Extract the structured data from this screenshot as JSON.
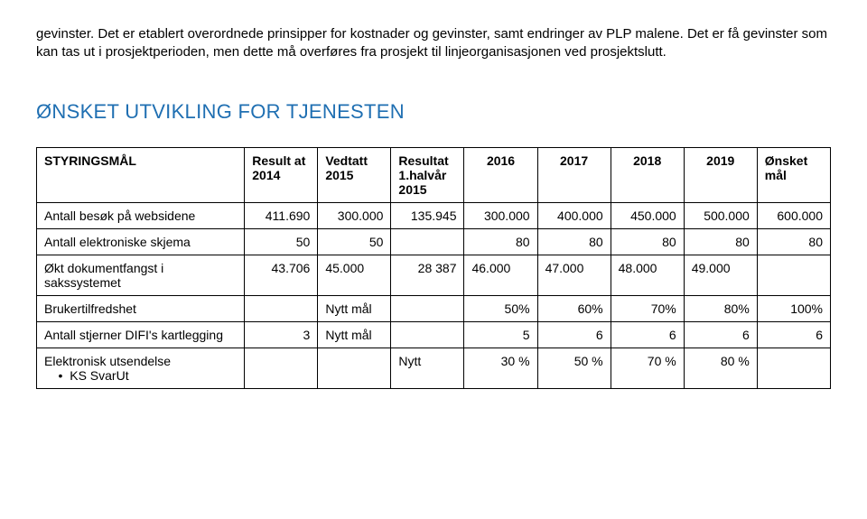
{
  "intro_text": "gevinster. Det er etablert overordnede prinsipper for kostnader og gevinster, samt endringer av PLP malene. Det er få gevinster som kan tas ut i prosjektperioden, men dette må overføres fra prosjekt til linjeorganisasjonen ved prosjektslutt.",
  "section_title": "ØNSKET UTVIKLING FOR TJENESTEN",
  "table": {
    "columns": [
      "STYRINGSMÅL",
      "Result at 2014",
      "Vedtatt 2015",
      "Resultat 1.halvår 2015",
      "2016",
      "2017",
      "2018",
      "2019",
      "Ønsket mål"
    ],
    "rows": [
      {
        "label": "Antall besøk på websidene",
        "cells": [
          "411.690",
          "300.000",
          "135.945",
          "300.000",
          "400.000",
          "450.000",
          "500.000",
          "600.000"
        ],
        "align": [
          "right",
          "right",
          "right",
          "right",
          "right",
          "right",
          "right",
          "right"
        ]
      },
      {
        "label": "Antall elektroniske skjema",
        "cells": [
          "50",
          "50",
          "",
          "80",
          "80",
          "80",
          "80",
          "80"
        ],
        "align": [
          "right",
          "right",
          "right",
          "right",
          "right",
          "right",
          "right",
          "right"
        ]
      },
      {
        "label": "Økt dokumentfangst i sakssystemet",
        "cells": [
          "43.706",
          "45.000",
          "28 387",
          "46.000",
          "47.000",
          "48.000",
          "49.000",
          ""
        ],
        "align": [
          "right",
          "left",
          "right",
          "left",
          "left",
          "left",
          "left",
          "left"
        ]
      },
      {
        "label": "Brukertilfredshet",
        "cells": [
          "",
          "Nytt mål",
          "",
          "50%",
          "60%",
          "70%",
          "80%",
          "100%"
        ],
        "align": [
          "left",
          "left",
          "left",
          "right",
          "right",
          "right",
          "right",
          "right"
        ]
      },
      {
        "label": "Antall stjerner DIFI's kartlegging",
        "cells": [
          "3",
          "Nytt mål",
          "",
          "5",
          "6",
          "6",
          "6",
          "6"
        ],
        "align": [
          "right",
          "left",
          "left",
          "right",
          "right",
          "right",
          "right",
          "right"
        ]
      },
      {
        "label": "Elektronisk utsendelse",
        "sub": "KS SvarUt",
        "cells": [
          "",
          "",
          "Nytt",
          "30 %",
          "50 %",
          "70 %",
          "80 %",
          ""
        ],
        "align": [
          "left",
          "left",
          "left",
          "right",
          "right",
          "right",
          "right",
          "left"
        ]
      }
    ]
  },
  "style": {
    "heading_color": "#1f6fb2",
    "border_color": "#000000",
    "background": "#ffffff",
    "font_family": "Arial",
    "body_fontsize": 15,
    "cell_fontsize": 14,
    "heading_fontsize": 22
  }
}
